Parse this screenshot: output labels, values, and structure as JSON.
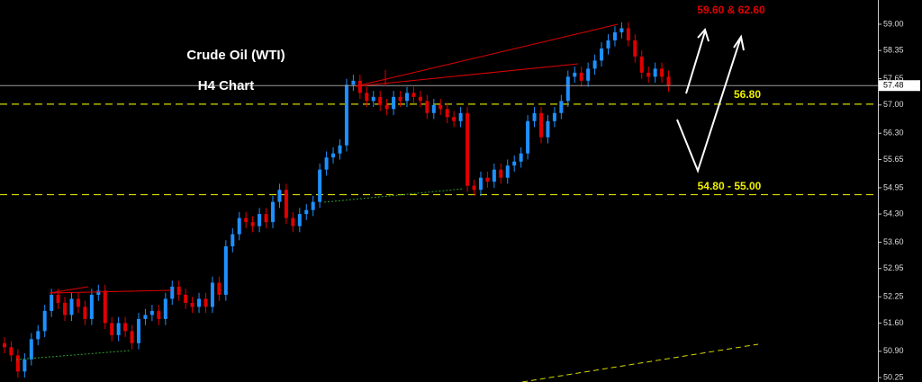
{
  "chart_data": {
    "type": "candlestick",
    "title": "Crude Oil (WTI)",
    "subtitle": "H4 Chart",
    "annotations": [
      "59.60 & 62.60",
      "56.80",
      "54.80 - 55.00"
    ],
    "up_color": "#1e90ff",
    "down_color": "#e00000",
    "ylim": [
      50.14,
      59.6
    ],
    "yticks": [
      {
        "value": 59.0,
        "label": "59.00"
      },
      {
        "value": 58.35,
        "label": "58.35"
      },
      {
        "value": 57.65,
        "label": "57.65"
      },
      {
        "value": 57.0,
        "label": "57.00"
      },
      {
        "value": 56.3,
        "label": "56.30"
      },
      {
        "value": 55.65,
        "label": "55.65"
      },
      {
        "value": 54.95,
        "label": "54.95"
      },
      {
        "value": 54.3,
        "label": "54.30"
      },
      {
        "value": 53.6,
        "label": "53.60"
      },
      {
        "value": 52.95,
        "label": "52.95"
      },
      {
        "value": 52.25,
        "label": "52.25"
      },
      {
        "value": 51.6,
        "label": "51.60"
      },
      {
        "value": 50.9,
        "label": "50.90"
      },
      {
        "value": 50.25,
        "label": "50.25"
      }
    ],
    "last_price": 57.48,
    "levels": [
      57.02,
      54.78
    ],
    "open": [
      51.1,
      51.0,
      50.8,
      50.4,
      50.7,
      51.2,
      51.4,
      51.9,
      52.3,
      52.1,
      51.8,
      52.2,
      52.0,
      51.7,
      52.3,
      52.4,
      51.6,
      51.3,
      51.6,
      51.4,
      51.1,
      51.7,
      51.8,
      51.9,
      51.7,
      52.2,
      52.5,
      52.3,
      52.1,
      52.0,
      52.2,
      52.0,
      52.6,
      52.3,
      53.5,
      53.8,
      54.2,
      54.1,
      54.0,
      54.3,
      54.1,
      54.6,
      54.9,
      54.2,
      54.0,
      54.3,
      54.4,
      54.6,
      55.4,
      55.7,
      55.8,
      56.0,
      57.5,
      57.6,
      57.3,
      57.1,
      57.2,
      57.0,
      56.9,
      57.2,
      57.1,
      57.3,
      57.2,
      57.1,
      56.8,
      57.0,
      56.9,
      56.7,
      56.6,
      56.8,
      55.0,
      54.9,
      55.2,
      55.1,
      55.4,
      55.2,
      55.5,
      55.6,
      55.8,
      56.6,
      56.8,
      56.2,
      56.6,
      56.8,
      57.1,
      57.7,
      57.8,
      57.6,
      57.9,
      58.1,
      58.4,
      58.6,
      58.8,
      58.9,
      58.6,
      58.2,
      57.8,
      57.7,
      57.9,
      57.7
    ],
    "high": [
      51.25,
      51.15,
      50.95,
      50.85,
      51.35,
      51.55,
      52.05,
      52.45,
      52.45,
      52.25,
      52.35,
      52.35,
      52.15,
      52.45,
      52.55,
      52.55,
      51.75,
      51.75,
      51.75,
      51.55,
      51.85,
      51.95,
      52.05,
      52.05,
      52.35,
      52.65,
      52.65,
      52.45,
      52.25,
      52.35,
      52.35,
      52.75,
      52.75,
      53.65,
      53.95,
      54.35,
      54.35,
      54.25,
      54.45,
      54.45,
      54.75,
      55.05,
      55.05,
      54.35,
      54.45,
      54.55,
      54.75,
      55.55,
      55.85,
      55.95,
      56.15,
      57.65,
      57.75,
      57.75,
      57.45,
      57.35,
      57.35,
      57.15,
      57.35,
      57.35,
      57.45,
      57.45,
      57.35,
      57.25,
      57.15,
      57.15,
      57.05,
      56.85,
      56.95,
      56.95,
      55.15,
      55.35,
      55.35,
      55.55,
      55.55,
      55.65,
      55.75,
      55.95,
      56.75,
      56.95,
      56.95,
      56.75,
      56.95,
      57.25,
      57.85,
      57.95,
      57.95,
      58.05,
      58.25,
      58.55,
      58.75,
      58.95,
      59.05,
      59.05,
      58.75,
      58.35,
      57.95,
      58.05,
      58.05,
      57.85
    ],
    "low": [
      50.85,
      50.65,
      50.25,
      50.25,
      50.55,
      51.05,
      51.25,
      51.75,
      51.95,
      51.65,
      51.65,
      51.85,
      51.55,
      51.55,
      52.15,
      51.45,
      51.15,
      51.15,
      51.25,
      50.95,
      50.95,
      51.55,
      51.65,
      51.55,
      51.55,
      52.05,
      52.15,
      51.95,
      51.85,
      51.85,
      51.85,
      51.85,
      52.15,
      52.15,
      53.35,
      53.65,
      53.95,
      53.85,
      53.85,
      53.95,
      53.95,
      54.45,
      54.05,
      53.85,
      53.85,
      54.15,
      54.25,
      54.45,
      55.25,
      55.55,
      55.65,
      55.85,
      57.35,
      57.15,
      56.95,
      56.95,
      56.85,
      56.75,
      56.75,
      56.95,
      56.95,
      57.05,
      56.95,
      56.65,
      56.65,
      56.75,
      56.55,
      56.45,
      56.45,
      54.85,
      54.75,
      54.75,
      54.95,
      54.95,
      55.05,
      55.05,
      55.35,
      55.45,
      55.65,
      56.45,
      56.05,
      56.05,
      56.45,
      56.65,
      56.95,
      57.55,
      57.45,
      57.45,
      57.75,
      57.95,
      58.25,
      58.45,
      58.65,
      58.45,
      58.05,
      57.65,
      57.55,
      57.55,
      57.55,
      57.33
    ],
    "close": [
      51.0,
      50.8,
      50.4,
      50.7,
      51.2,
      51.4,
      51.9,
      52.3,
      52.1,
      51.8,
      52.2,
      52.0,
      51.7,
      52.3,
      52.4,
      51.6,
      51.3,
      51.6,
      51.4,
      51.1,
      51.7,
      51.8,
      51.9,
      51.7,
      52.2,
      52.5,
      52.3,
      52.1,
      52.0,
      52.2,
      52.0,
      52.6,
      52.3,
      53.5,
      53.8,
      54.2,
      54.1,
      54.0,
      54.3,
      54.1,
      54.6,
      54.9,
      54.2,
      54.0,
      54.3,
      54.4,
      54.6,
      55.4,
      55.7,
      55.8,
      56.0,
      57.5,
      57.6,
      57.3,
      57.1,
      57.2,
      57.0,
      56.9,
      57.2,
      57.1,
      57.3,
      57.2,
      57.1,
      56.8,
      57.0,
      56.9,
      56.7,
      56.6,
      56.8,
      55.0,
      54.9,
      55.2,
      55.1,
      55.4,
      55.2,
      55.5,
      55.6,
      55.8,
      56.6,
      56.8,
      56.2,
      56.6,
      56.8,
      57.1,
      57.7,
      57.8,
      57.6,
      57.9,
      58.1,
      58.4,
      58.6,
      58.8,
      58.9,
      58.6,
      58.2,
      57.8,
      57.7,
      57.9,
      57.7,
      57.48
    ]
  }
}
